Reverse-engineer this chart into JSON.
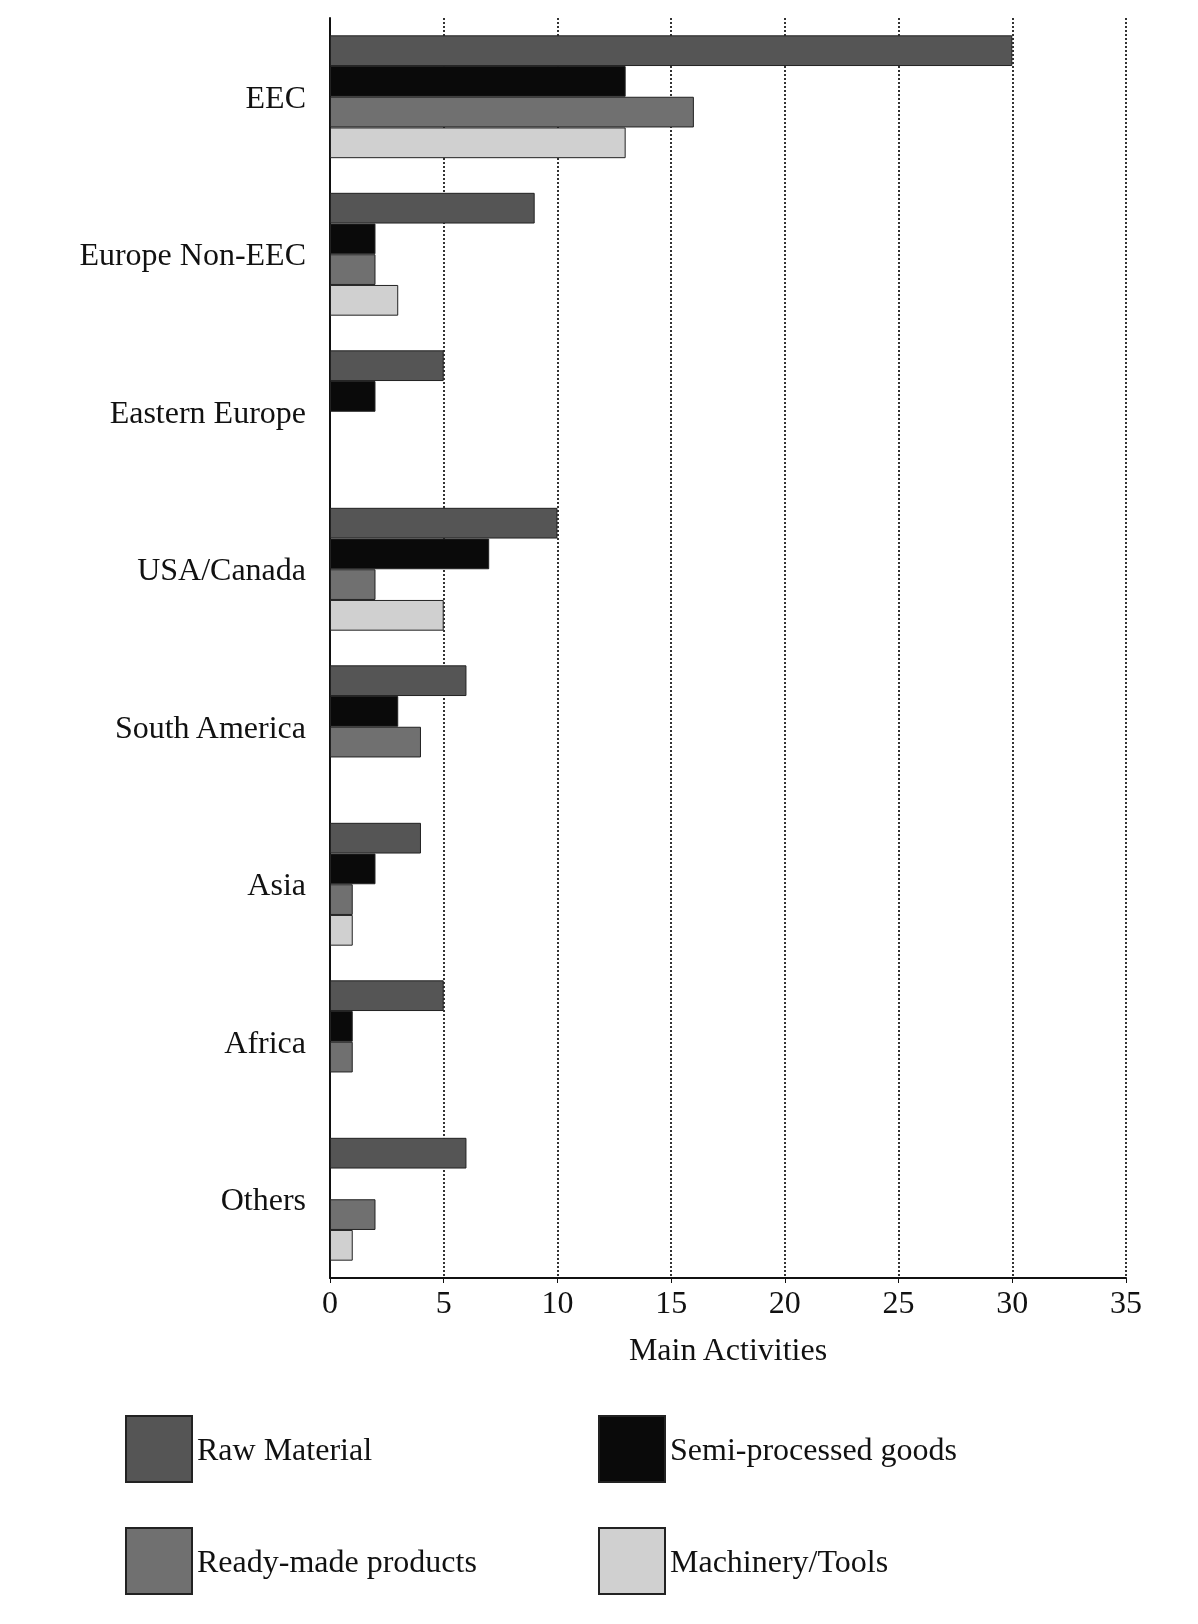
{
  "chart_data": {
    "type": "bar",
    "orientation": "horizontal",
    "xlabel": "Main Activities",
    "categories": [
      "EEC",
      "Europe Non-EEC",
      "Eastern Europe",
      "USA/Canada",
      "South America",
      "Asia",
      "Africa",
      "Others"
    ],
    "series": [
      {
        "name": "Raw Material",
        "color": "#555555",
        "values": [
          30,
          9,
          5,
          10,
          6,
          4,
          5,
          6
        ]
      },
      {
        "name": "Semi-processed goods",
        "color": "#0a0a0a",
        "values": [
          13,
          2,
          2,
          7,
          3,
          2,
          1,
          null
        ]
      },
      {
        "name": "Ready-made products",
        "color": "#707070",
        "values": [
          16,
          2,
          null,
          2,
          4,
          1,
          1,
          2
        ]
      },
      {
        "name": "Machinery/Tools",
        "color": "#d0d0d0",
        "values": [
          13,
          3,
          null,
          5,
          null,
          1,
          null,
          1
        ]
      }
    ],
    "xlim": [
      0,
      35
    ],
    "xticks": [
      0,
      5,
      10,
      15,
      20,
      25,
      30,
      35
    ],
    "grid": "x",
    "legend": "bottom"
  }
}
